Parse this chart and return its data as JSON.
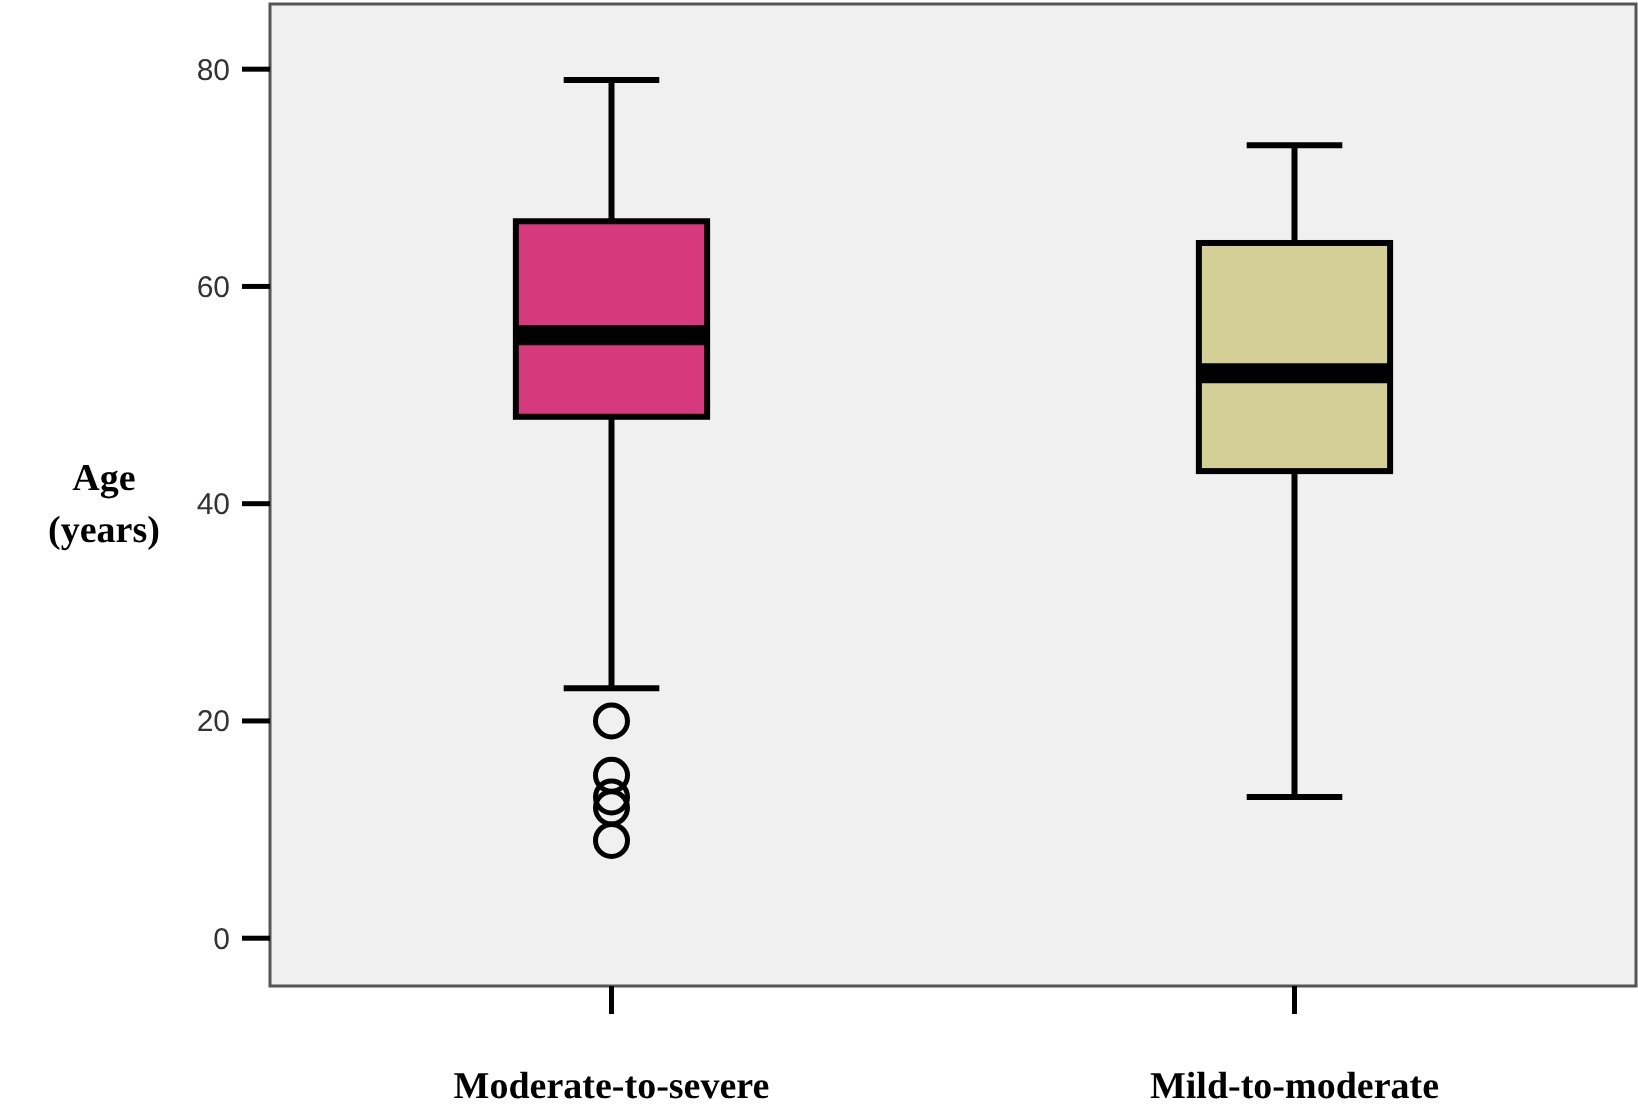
{
  "chart_data": {
    "type": "box",
    "ylabel": "Age\n(years)",
    "categories": [
      "Moderate-to-severe",
      "Mild-to-moderate"
    ],
    "ylim": [
      -4.4,
      86
    ],
    "yticks": [
      0,
      20,
      40,
      60,
      80
    ],
    "grid": false,
    "colors": [
      "#d63a7c",
      "#d4cf97"
    ],
    "boxes": [
      {
        "low": 23,
        "q1": 48,
        "median": 55.5,
        "q3": 66,
        "high": 79,
        "outliers": [
          20,
          15,
          13,
          12,
          9
        ]
      },
      {
        "low": 13,
        "q1": 43,
        "median": 52,
        "q3": 64,
        "high": 73
      }
    ]
  }
}
